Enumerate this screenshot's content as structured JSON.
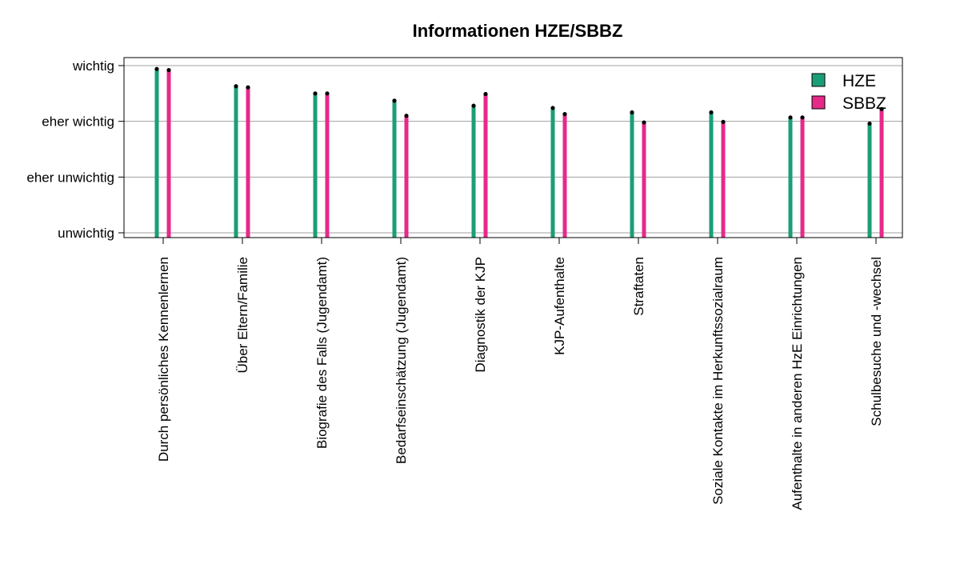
{
  "chart_data": {
    "type": "bar",
    "title": "Informationen HZE/SBBZ",
    "xlabel": "",
    "ylabel": "",
    "ylim": [
      1,
      4
    ],
    "y_ticks": [
      {
        "value": 1,
        "label": "unwichtig"
      },
      {
        "value": 2,
        "label": "eher unwichtig"
      },
      {
        "value": 3,
        "label": "eher wichtig"
      },
      {
        "value": 4,
        "label": "wichtig"
      }
    ],
    "grid": true,
    "legend_position": "top-right",
    "categories": [
      "Durch persönliches Kennenlernen",
      "Über Eltern/Familie",
      "Biografie des Falls (Jugendamt)",
      "Bedarfseinschätzung (Jugendamt)",
      "Diagnostik der KJP",
      "KJP-Aufenthalte",
      "Straftaten",
      "Soziale Kontakte im Herkunftssozialraum",
      "Aufenthalte in anderen HzE Einrichtungen",
      "Schulbesuche und -wechsel"
    ],
    "series": [
      {
        "name": "HZE",
        "color": "#1b9e77",
        "values": [
          3.94,
          3.63,
          3.5,
          3.37,
          3.28,
          3.24,
          3.16,
          3.16,
          3.07,
          2.96
        ]
      },
      {
        "name": "SBBZ",
        "color": "#e7298a",
        "values": [
          3.92,
          3.61,
          3.5,
          3.1,
          3.49,
          3.13,
          2.98,
          2.99,
          3.07,
          3.22
        ]
      }
    ]
  }
}
